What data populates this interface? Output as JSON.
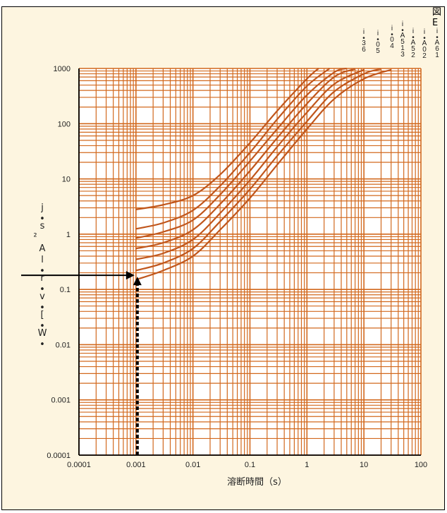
{
  "corner_label": "図E",
  "chart_data": {
    "type": "line",
    "xlabel": "溶断時間（s）",
    "ylabel_chars": [
      "j",
      "•",
      "s",
      "²",
      "A",
      "l",
      "•",
      "r",
      "•",
      "v",
      "•",
      "[",
      "•",
      "W",
      "•"
    ],
    "x_scale": "log",
    "y_scale": "log",
    "xlim": [
      0.0001,
      100
    ],
    "ylim": [
      0.0001,
      1000
    ],
    "x_ticks": [
      "0.0001",
      "0.001",
      "0.01",
      "0.1",
      "1",
      "10",
      "100"
    ],
    "y_ticks": [
      "1000",
      "100",
      "10",
      "1",
      "0.1",
      "0.01",
      "0.001",
      "0.0001"
    ],
    "grid": true,
    "series": [
      {
        "name": "i•36",
        "label_chars": [
          "i",
          "•",
          "3",
          "6"
        ],
        "points": [
          [
            0.001,
            0.15
          ],
          [
            0.003,
            0.22
          ],
          [
            0.01,
            0.4
          ],
          [
            0.03,
            1.2
          ],
          [
            0.1,
            4.5
          ],
          [
            0.3,
            18
          ],
          [
            1,
            80
          ],
          [
            3,
            280
          ],
          [
            10,
            650
          ],
          [
            30,
            950
          ]
        ]
      },
      {
        "name": "i•05",
        "label_chars": [
          "i",
          "•",
          "0",
          "5"
        ],
        "points": [
          [
            0.001,
            0.22
          ],
          [
            0.003,
            0.3
          ],
          [
            0.01,
            0.55
          ],
          [
            0.03,
            1.7
          ],
          [
            0.1,
            6.5
          ],
          [
            0.3,
            26
          ],
          [
            1,
            110
          ],
          [
            3,
            380
          ],
          [
            10,
            800
          ],
          [
            20,
            980
          ]
        ]
      },
      {
        "name": "i•04",
        "label_chars": [
          "i",
          "•",
          "0",
          "4"
        ],
        "points": [
          [
            0.001,
            0.35
          ],
          [
            0.003,
            0.45
          ],
          [
            0.01,
            0.8
          ],
          [
            0.03,
            2.4
          ],
          [
            0.1,
            9.5
          ],
          [
            0.3,
            38
          ],
          [
            1,
            160
          ],
          [
            3,
            520
          ],
          [
            10,
            950
          ]
        ]
      },
      {
        "name": "i•A513",
        "label_chars": [
          "i",
          "•",
          "A",
          "5",
          "1",
          "3"
        ],
        "points": [
          [
            0.001,
            0.55
          ],
          [
            0.003,
            0.7
          ],
          [
            0.01,
            1.2
          ],
          [
            0.03,
            3.5
          ],
          [
            0.1,
            14
          ],
          [
            0.3,
            55
          ],
          [
            1,
            230
          ],
          [
            3,
            700
          ],
          [
            7,
            980
          ]
        ]
      },
      {
        "name": "i•A52",
        "label_chars": [
          "i",
          "•",
          "A",
          "5",
          "2"
        ],
        "points": [
          [
            0.001,
            0.85
          ],
          [
            0.003,
            1.1
          ],
          [
            0.01,
            1.8
          ],
          [
            0.03,
            5.2
          ],
          [
            0.1,
            21
          ],
          [
            0.3,
            80
          ],
          [
            1,
            330
          ],
          [
            3,
            850
          ],
          [
            5,
            1000
          ]
        ]
      },
      {
        "name": "i•A02",
        "label_chars": [
          "i",
          "•",
          "A",
          "0",
          "2"
        ],
        "points": [
          [
            0.001,
            1.25
          ],
          [
            0.003,
            1.6
          ],
          [
            0.01,
            2.7
          ],
          [
            0.03,
            7.5
          ],
          [
            0.1,
            30
          ],
          [
            0.3,
            120
          ],
          [
            1,
            480
          ],
          [
            2.5,
            1000
          ]
        ]
      },
      {
        "name": "i•A61",
        "label_chars": [
          "i",
          "•",
          "A",
          "6",
          "1"
        ],
        "points": [
          [
            0.001,
            2.8
          ],
          [
            0.003,
            3.4
          ],
          [
            0.01,
            5.0
          ],
          [
            0.03,
            12
          ],
          [
            0.1,
            45
          ],
          [
            0.3,
            170
          ],
          [
            1,
            650
          ],
          [
            1.6,
            1000
          ]
        ]
      }
    ],
    "annotation": {
      "description": "arrow from x=0.001 up to curve and from curve left to y axis",
      "x": 0.001,
      "y": 0.18
    }
  }
}
